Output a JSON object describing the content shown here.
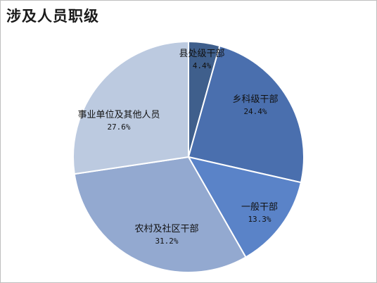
{
  "chart_data": {
    "type": "pie",
    "title": "涉及人员职级",
    "categories": [
      "县处级干部",
      "乡科级干部",
      "一般干部",
      "农村及社区干部",
      "事业单位及其他人员"
    ],
    "values": [
      4.4,
      24.4,
      13.3,
      31.2,
      27.6
    ],
    "value_labels": [
      "4.4%",
      "24.4%",
      "13.3%",
      "31.2%",
      "27.6%"
    ],
    "colors": [
      "#3f5f8c",
      "#4a6fae",
      "#5a83c8",
      "#93a9d0",
      "#bccae0"
    ],
    "legend": "none",
    "start": "12 o'clock",
    "direction": "clockwise"
  }
}
